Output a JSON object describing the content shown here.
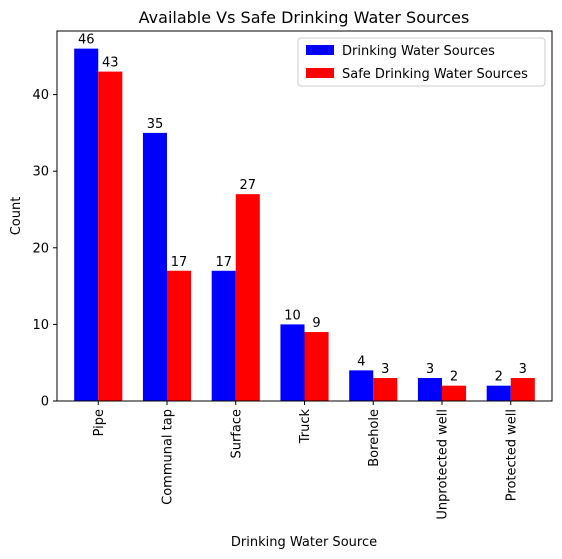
{
  "chart_data": {
    "type": "bar",
    "title": "Available Vs Safe Drinking Water Sources",
    "xlabel": "Drinking Water Source",
    "ylabel": "Count",
    "categories": [
      "Pipe",
      "Communal tap",
      "Surface",
      "Truck",
      "Borehole",
      "Unprotected well",
      "Protected well"
    ],
    "series": [
      {
        "name": "Drinking Water Sources",
        "color": "#0000ff",
        "values": [
          46,
          35,
          17,
          10,
          4,
          3,
          2
        ]
      },
      {
        "name": "Safe Drinking Water Sources",
        "color": "#ff0000",
        "values": [
          43,
          17,
          27,
          9,
          3,
          2,
          3
        ]
      }
    ],
    "ylim": [
      0,
      48.3
    ],
    "yticks": [
      0,
      10,
      20,
      30,
      40
    ],
    "legend_position": "top-right",
    "grid": false
  }
}
